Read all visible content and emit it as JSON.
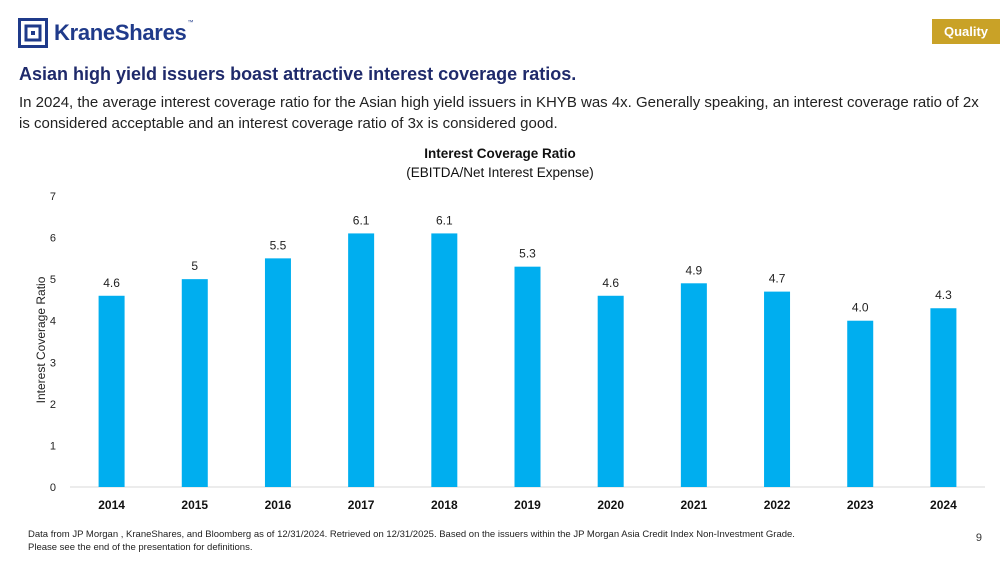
{
  "brand": {
    "name": "KraneShares",
    "trademark": "™",
    "primary_color": "#1f3a8a"
  },
  "badge": {
    "label": "Quality",
    "color": "#c9a227"
  },
  "headline": "Asian high yield issuers boast attractive interest coverage ratios.",
  "intro": "In 2024, the average interest coverage ratio for the Asian high yield issuers in KHYB was 4x. Generally speaking, an interest coverage ratio of 2x is considered acceptable and an interest coverage ratio of 3x is considered good.",
  "chart_data": {
    "type": "bar",
    "title": "Interest Coverage Ratio",
    "subtitle": "(EBITDA/Net Interest Expense)",
    "xlabel": "",
    "ylabel": "Interest Coverage Ratio",
    "categories": [
      "2014",
      "2015",
      "2016",
      "2017",
      "2018",
      "2019",
      "2020",
      "2021",
      "2022",
      "2023",
      "2024"
    ],
    "values": [
      4.6,
      5,
      5.5,
      6.1,
      6.1,
      5.3,
      4.6,
      4.9,
      4.7,
      4.0,
      4.3
    ],
    "data_labels": [
      "4.6",
      "5",
      "5.5",
      "6.1",
      "6.1",
      "5.3",
      "4.6",
      "4.9",
      "4.7",
      "4.0",
      "4.3"
    ],
    "ylim": [
      0,
      7
    ],
    "yticks": [
      "0",
      "1",
      "2",
      "3",
      "4",
      "5",
      "6",
      "7"
    ],
    "grid": false,
    "bar_color": "#00aeef"
  },
  "footnote": {
    "line1": "Data from JP Morgan , KraneShares, and Bloomberg as of 12/31/2024. Retrieved on 12/31/2025. Based on the issuers within the JP Morgan Asia Credit Index Non-Investment Grade.",
    "line2": "Please see the end of the presentation for definitions."
  },
  "page_number": "9"
}
